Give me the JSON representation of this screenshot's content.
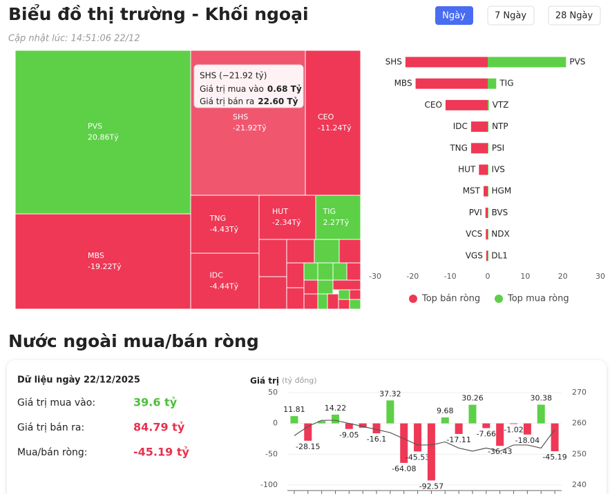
{
  "header": {
    "title": "Biểu đồ thị trường - Khối ngoại",
    "updated": "Cập nhật lúc: 14:51:06 22/12",
    "tabs": [
      "Ngày",
      "7 Ngày",
      "28 Ngày"
    ]
  },
  "chart_data": [
    {
      "type": "treemap",
      "categories": [
        "PVS",
        "SHS",
        "CEO",
        "MBS",
        "TNG",
        "HUT",
        "TIG",
        "IDC"
      ],
      "values": [
        20.86,
        -21.92,
        -11.24,
        -19.22,
        -4.43,
        -2.34,
        2.27,
        -4.44
      ],
      "value_labels": [
        "20.86Tỷ",
        "-21.92Tỷ",
        "-11.24Tỷ",
        "-19.22Tỷ",
        "-4.43Tỷ",
        "-2.34Tỷ",
        "2.27Tỷ",
        "-4.44Tỷ"
      ],
      "positive_color": "#5dd047",
      "negative_color": "#ee3856",
      "tooltip": {
        "title": "SHS (−21.92 tỷ)",
        "lines": [
          {
            "label": "Giá trị mua vào",
            "value": "0.68 Tỷ"
          },
          {
            "label": "Giá trị bán ra",
            "value": "22.60 Tỷ"
          }
        ]
      }
    },
    {
      "type": "diverging_bar",
      "series": [
        {
          "name": "Top bán ròng",
          "color": "#ee3856",
          "categories": [
            "SHS",
            "MBS",
            "CEO",
            "IDC",
            "TNG",
            "HUT",
            "MST",
            "PVI",
            "VCS",
            "VGS"
          ],
          "values": [
            -21.92,
            -19.22,
            -11.24,
            -4.44,
            -4.43,
            -2.34,
            -1.1,
            -0.6,
            -0.5,
            -0.4
          ]
        },
        {
          "name": "Top mua ròng",
          "color": "#5dd047",
          "categories": [
            "PVS",
            "TIG",
            "VTZ",
            "NTP",
            "PSI",
            "IVS",
            "HGM",
            "BVS",
            "NDX",
            "DL1"
          ],
          "values": [
            20.86,
            2.27,
            0.3,
            0.2,
            0.15,
            0.1,
            0.1,
            0.1,
            0.05,
            0.05
          ]
        }
      ],
      "xlim": [
        -30,
        30
      ],
      "xticks": [
        -30,
        -20,
        -10,
        0,
        10,
        20,
        30
      ]
    },
    {
      "type": "bar_line",
      "y_label": "Giá trị",
      "y_unit": "(tỷ đồng)",
      "categories": [
        null,
        null,
        null,
        null,
        null,
        null,
        null,
        null,
        null,
        null,
        null,
        null,
        null,
        null,
        null,
        null,
        null,
        null,
        null,
        null
      ],
      "series": [
        {
          "type": "bar",
          "positive_color": "#5dd047",
          "negative_color": "#ee3856",
          "values": [
            11.81,
            -28.15,
            4,
            14.22,
            -9.05,
            -7,
            -16.1,
            37.32,
            -64.08,
            -45.53,
            -92.57,
            9.68,
            -17.11,
            30.26,
            -7.66,
            -36.43,
            -1.02,
            -18.04,
            30.38,
            -45.19
          ],
          "value_labels": [
            "11.81",
            "-28.15",
            null,
            "14.22",
            "-9.05",
            null,
            "-16.1",
            "37.32",
            "-64.08",
            "-45.53",
            "-92.57",
            "9.68",
            "-17.11",
            "30.26",
            "-7.66",
            "-36.43",
            "-1.02",
            "-18.04",
            "30.38",
            "-45.19"
          ]
        },
        {
          "type": "line",
          "axis": "y2",
          "color": "#555555",
          "values": [
            256,
            259,
            261,
            261,
            260,
            259,
            258,
            257,
            255,
            253,
            253,
            254,
            252,
            251,
            252,
            251,
            253,
            253,
            252,
            258
          ]
        }
      ],
      "ylim": [
        -100,
        50
      ],
      "yticks": [
        -100,
        -50,
        0,
        50
      ],
      "y2lim": [
        240,
        270
      ],
      "y2ticks": [
        240,
        250,
        260,
        270
      ]
    }
  ],
  "section_title": "Nước ngoài mua/bán ròng",
  "summary": {
    "date": "Dữ liệu ngày 22/12/2025",
    "rows": [
      {
        "label": "Giá trị mua vào:",
        "value": "39.6 tỷ"
      },
      {
        "label": "Giá trị bán ra:",
        "value": "84.79 tỷ"
      },
      {
        "label": "Mua/bán ròng:",
        "value": "-45.19 tỷ"
      }
    ]
  }
}
